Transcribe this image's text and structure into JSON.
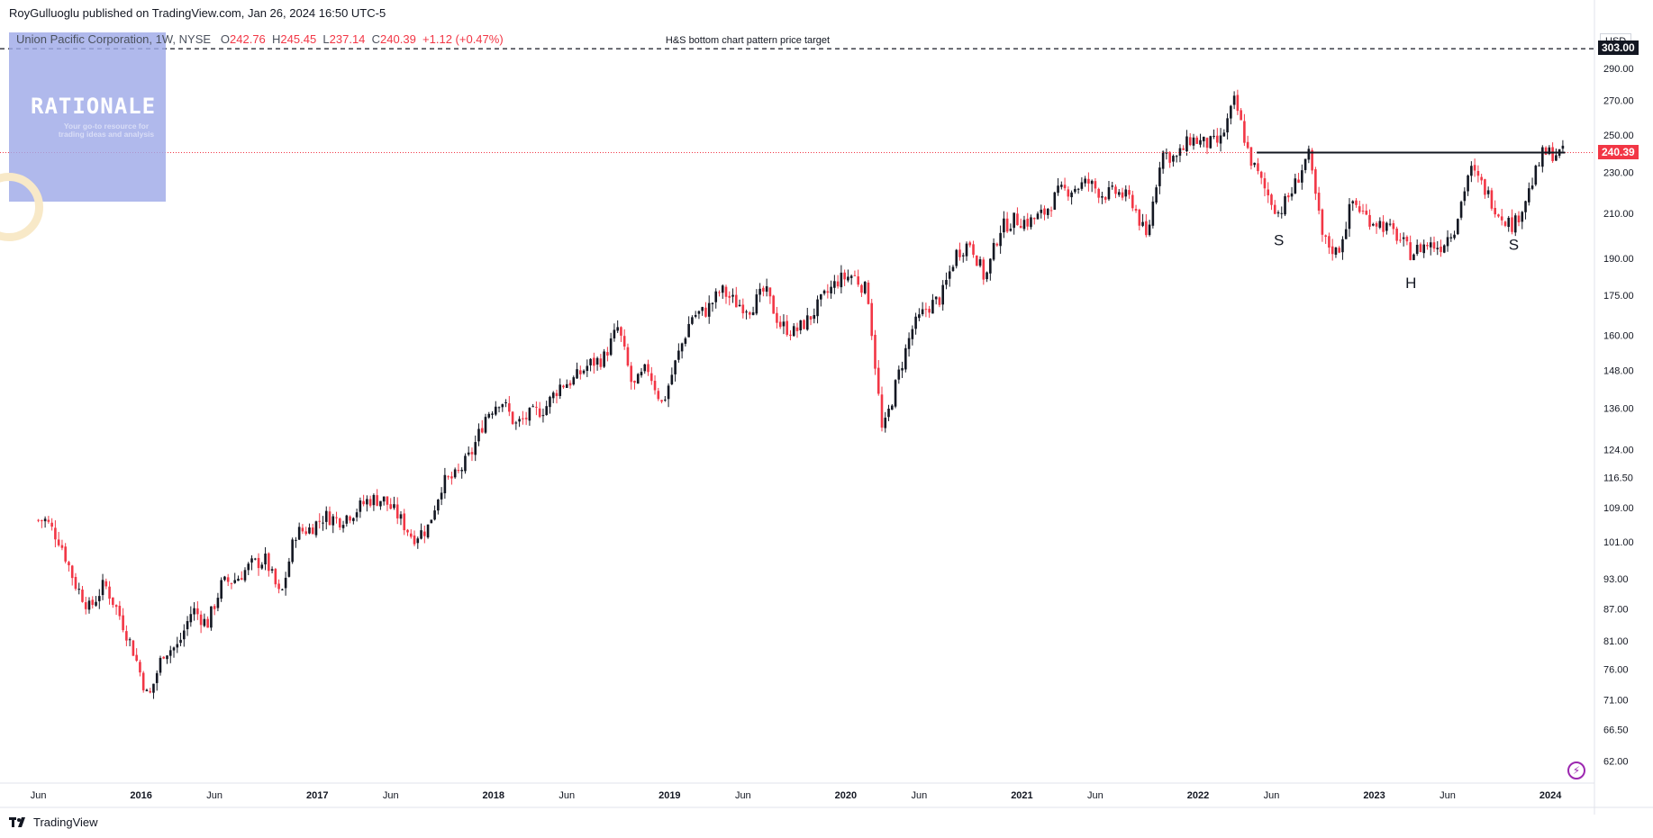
{
  "publisher_line": "RoyGulluoglu published on TradingView.com, Jan 26, 2024 16:50 UTC-5",
  "legend": {
    "symbol": "Union Pacific Corporation, 1W, NYSE",
    "o_label": "O",
    "o": "242.76",
    "h_label": "H",
    "h": "245.45",
    "l_label": "L",
    "l": "237.14",
    "c_label": "C",
    "c": "240.39",
    "change": "+1.12 (+0.47%)"
  },
  "watermark": {
    "title": "RATIONALE",
    "subtitle": "Your go-to resource for trading ideas and analysis"
  },
  "currency": "USD",
  "price_tags": {
    "target": "303.00",
    "last": "240.39"
  },
  "footer_brand": "TradingView",
  "colors": {
    "up": "#131722",
    "down": "#f23645",
    "last_line": "#f23645",
    "neckline": "#131722",
    "accent": "#9c27b0"
  },
  "icons": [
    "tradingview-logo-icon",
    "lightning-icon"
  ],
  "chart_data": {
    "type": "candlestick",
    "scale": "log",
    "yticks": [
      "303.00",
      "290.00",
      "270.00",
      "250.00",
      "230.00",
      "210.00",
      "190.00",
      "175.00",
      "160.00",
      "148.00",
      "136.00",
      "124.00",
      "116.50",
      "109.00",
      "101.00",
      "93.00",
      "87.00",
      "81.00",
      "76.00",
      "71.00",
      "66.50",
      "62.00"
    ],
    "xticks": [
      "Jun",
      "2016",
      "Jun",
      "2017",
      "Jun",
      "2018",
      "Jun",
      "2019",
      "Jun",
      "2020",
      "Jun",
      "2021",
      "Jun",
      "2022",
      "Jun",
      "2023",
      "Jun",
      "2024"
    ],
    "x_range": [
      "2015-06",
      "2024-03"
    ],
    "ylim": [
      59,
      318
    ],
    "annotations": [
      {
        "type": "hline",
        "value": 303.0,
        "style": "dashed",
        "label": "H&S bottom chart pattern price target"
      },
      {
        "type": "neckline",
        "value": 240.39,
        "from": "2022-05",
        "to": "2024-02"
      },
      {
        "type": "text",
        "label": "S",
        "date": "2022-06",
        "value": 198
      },
      {
        "type": "text",
        "label": "H",
        "date": "2023-03",
        "value": 180
      },
      {
        "type": "text",
        "label": "S",
        "date": "2023-10",
        "value": 196
      }
    ],
    "anchors": [
      [
        "2015-06",
        106
      ],
      [
        "2015-07",
        101
      ],
      [
        "2015-08",
        92
      ],
      [
        "2015-09",
        87
      ],
      [
        "2015-10",
        92
      ],
      [
        "2015-11",
        86
      ],
      [
        "2015-12",
        79
      ],
      [
        "2016-01",
        71
      ],
      [
        "2016-02",
        79
      ],
      [
        "2016-03",
        80
      ],
      [
        "2016-04",
        87
      ],
      [
        "2016-05",
        84
      ],
      [
        "2016-06",
        92
      ],
      [
        "2016-07",
        93
      ],
      [
        "2016-08",
        96
      ],
      [
        "2016-09",
        97
      ],
      [
        "2016-10",
        89
      ],
      [
        "2016-11",
        103
      ],
      [
        "2016-12",
        104
      ],
      [
        "2017-01",
        107
      ],
      [
        "2017-02",
        106
      ],
      [
        "2017-03",
        108
      ],
      [
        "2017-04",
        111
      ],
      [
        "2017-05",
        111
      ],
      [
        "2017-06",
        107
      ],
      [
        "2017-07",
        102
      ],
      [
        "2017-08",
        104
      ],
      [
        "2017-09",
        115
      ],
      [
        "2017-10",
        117
      ],
      [
        "2017-11",
        123
      ],
      [
        "2017-12",
        134
      ],
      [
        "2018-01",
        139
      ],
      [
        "2018-02",
        131
      ],
      [
        "2018-03",
        134
      ],
      [
        "2018-04",
        136
      ],
      [
        "2018-05",
        143
      ],
      [
        "2018-06",
        145
      ],
      [
        "2018-07",
        150
      ],
      [
        "2018-08",
        152
      ],
      [
        "2018-09",
        163
      ],
      [
        "2018-10",
        142
      ],
      [
        "2018-11",
        149
      ],
      [
        "2018-12",
        137
      ],
      [
        "2019-01",
        152
      ],
      [
        "2019-02",
        167
      ],
      [
        "2019-03",
        169
      ],
      [
        "2019-04",
        177
      ],
      [
        "2019-05",
        172
      ],
      [
        "2019-06",
        170
      ],
      [
        "2019-07",
        177
      ],
      [
        "2019-08",
        164
      ],
      [
        "2019-09",
        161
      ],
      [
        "2019-10",
        166
      ],
      [
        "2019-11",
        174
      ],
      [
        "2019-12",
        181
      ],
      [
        "2020-01",
        183
      ],
      [
        "2020-02",
        176
      ],
      [
        "2020-03",
        128
      ],
      [
        "2020-04",
        145
      ],
      [
        "2020-05",
        162
      ],
      [
        "2020-06",
        170
      ],
      [
        "2020-07",
        174
      ],
      [
        "2020-08",
        192
      ],
      [
        "2020-09",
        197
      ],
      [
        "2020-10",
        181
      ],
      [
        "2020-11",
        203
      ],
      [
        "2020-12",
        207
      ],
      [
        "2021-01",
        206
      ],
      [
        "2021-02",
        210
      ],
      [
        "2021-03",
        220
      ],
      [
        "2021-04",
        222
      ],
      [
        "2021-05",
        225
      ],
      [
        "2021-06",
        219
      ],
      [
        "2021-07",
        220
      ],
      [
        "2021-08",
        216
      ],
      [
        "2021-09",
        198
      ],
      [
        "2021-10",
        241
      ],
      [
        "2021-11",
        237
      ],
      [
        "2021-12",
        248
      ],
      [
        "2022-01",
        245
      ],
      [
        "2022-02",
        246
      ],
      [
        "2022-03",
        270
      ],
      [
        "2022-04",
        238
      ],
      [
        "2022-05",
        222
      ],
      [
        "2022-06",
        210
      ],
      [
        "2022-07",
        222
      ],
      [
        "2022-08",
        240
      ],
      [
        "2022-09",
        198
      ],
      [
        "2022-10",
        192
      ],
      [
        "2022-11",
        216
      ],
      [
        "2022-12",
        208
      ],
      [
        "2023-01",
        205
      ],
      [
        "2023-02",
        200
      ],
      [
        "2023-03",
        192
      ],
      [
        "2023-04",
        196
      ],
      [
        "2023-05",
        195
      ],
      [
        "2023-06",
        204
      ],
      [
        "2023-07",
        232
      ],
      [
        "2023-08",
        222
      ],
      [
        "2023-09",
        210
      ],
      [
        "2023-10",
        204
      ],
      [
        "2023-11",
        220
      ],
      [
        "2023-12",
        240
      ],
      [
        "2024-01",
        240
      ]
    ]
  }
}
